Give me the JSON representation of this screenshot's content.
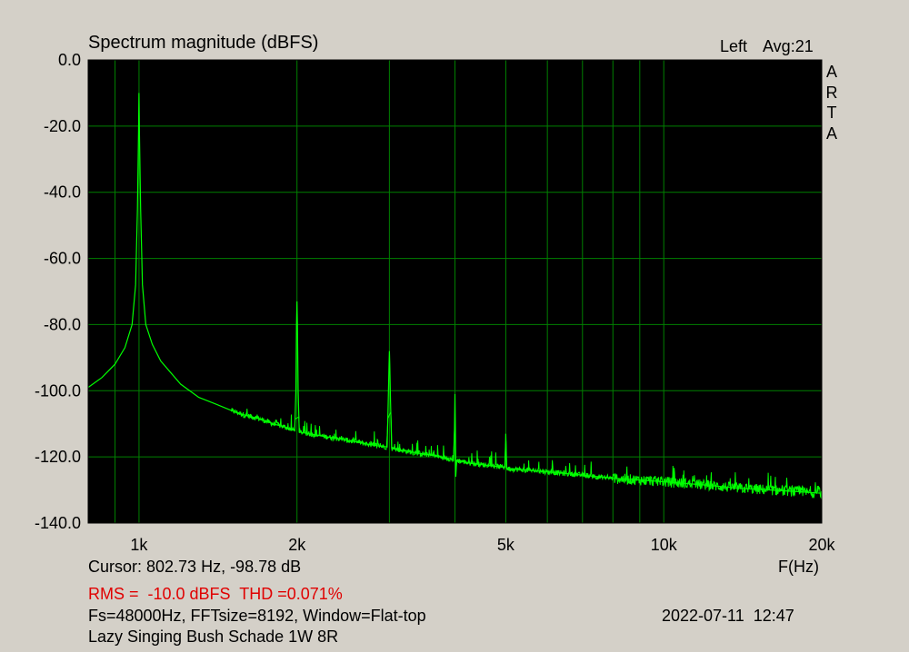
{
  "chart_data": {
    "type": "line",
    "title": "Spectrum magnitude (dBFS)",
    "channel": "Left",
    "averaging": "Avg:21",
    "brand": [
      "A",
      "R",
      "T",
      "A"
    ],
    "xlabel": "F(Hz)",
    "x_scale": "log",
    "xlim": [
      800,
      20000
    ],
    "ylim": [
      -140,
      0
    ],
    "grid": true,
    "colors": {
      "trace": "#00ff00",
      "grid": "#008000",
      "background": "#000000"
    },
    "y_ticks": [
      "0.0",
      "-20.0",
      "-40.0",
      "-60.0",
      "-80.0",
      "-100.0",
      "-120.0",
      "-140.0"
    ],
    "x_tick_labels": [
      {
        "value": 1000,
        "label": "1k"
      },
      {
        "value": 2000,
        "label": "2k"
      },
      {
        "value": 5000,
        "label": "5k"
      },
      {
        "value": 10000,
        "label": "10k"
      },
      {
        "value": 20000,
        "label": "20k"
      }
    ],
    "x_grid_lines": [
      900,
      1000,
      2000,
      3000,
      4000,
      5000,
      6000,
      7000,
      8000,
      9000,
      10000,
      20000
    ],
    "series": [
      {
        "points": [
          [
            800,
            -99
          ],
          [
            850,
            -96
          ],
          [
            900,
            -92
          ],
          [
            940,
            -87
          ],
          [
            970,
            -80
          ],
          [
            985,
            -68
          ],
          [
            993,
            -45
          ],
          [
            998,
            -22
          ],
          [
            1000,
            -10
          ],
          [
            1002,
            -22
          ],
          [
            1007,
            -45
          ],
          [
            1015,
            -68
          ],
          [
            1030,
            -80
          ],
          [
            1060,
            -86
          ],
          [
            1100,
            -91
          ],
          [
            1200,
            -98
          ],
          [
            1300,
            -102
          ],
          [
            1400,
            -104
          ],
          [
            1500,
            -106
          ],
          [
            1600,
            -107.5
          ],
          [
            1700,
            -108.5
          ],
          [
            1800,
            -110
          ],
          [
            1900,
            -111
          ],
          [
            1980,
            -112
          ],
          [
            1990,
            -100
          ],
          [
            1996,
            -80
          ],
          [
            2000,
            -73
          ],
          [
            2004,
            -80
          ],
          [
            2010,
            -100
          ],
          [
            2020,
            -112.5
          ],
          [
            2200,
            -113.5
          ],
          [
            2400,
            -114.5
          ],
          [
            2600,
            -115.5
          ],
          [
            2800,
            -116.5
          ],
          [
            2970,
            -117
          ],
          [
            2985,
            -103
          ],
          [
            2995,
            -92
          ],
          [
            3000,
            -88
          ],
          [
            3005,
            -92
          ],
          [
            3015,
            -103
          ],
          [
            3030,
            -117.5
          ],
          [
            3300,
            -118.5
          ],
          [
            3600,
            -119.5
          ],
          [
            3900,
            -120.5
          ],
          [
            3975,
            -121
          ],
          [
            3992,
            -112
          ],
          [
            4000,
            -101
          ],
          [
            4008,
            -112
          ],
          [
            4015,
            -126
          ],
          [
            4030,
            -121
          ],
          [
            4300,
            -122
          ],
          [
            4600,
            -122.5
          ],
          [
            4900,
            -123
          ],
          [
            4980,
            -123
          ],
          [
            4995,
            -116
          ],
          [
            5000,
            -113
          ],
          [
            5005,
            -116
          ],
          [
            5020,
            -123.5
          ],
          [
            5500,
            -124
          ],
          [
            6000,
            -124.5
          ],
          [
            6500,
            -125
          ],
          [
            7000,
            -125.5
          ],
          [
            7500,
            -126
          ],
          [
            8000,
            -126.5
          ],
          [
            9000,
            -127
          ],
          [
            10000,
            -127.5
          ],
          [
            12000,
            -128.5
          ],
          [
            14000,
            -129.5
          ],
          [
            16000,
            -130
          ],
          [
            18000,
            -130.5
          ],
          [
            20000,
            -131
          ]
        ]
      }
    ]
  },
  "footer": {
    "cursor": "Cursor: 802.73 Hz, -98.78 dB",
    "rms_thd": "RMS =  -10.0 dBFS  THD =0.071%",
    "settings": "Fs=48000Hz, FFTsize=8192, Window=Flat-top",
    "datetime": "2022-07-11  12:47",
    "description": "Lazy Singing Bush Schade 1W 8R"
  }
}
